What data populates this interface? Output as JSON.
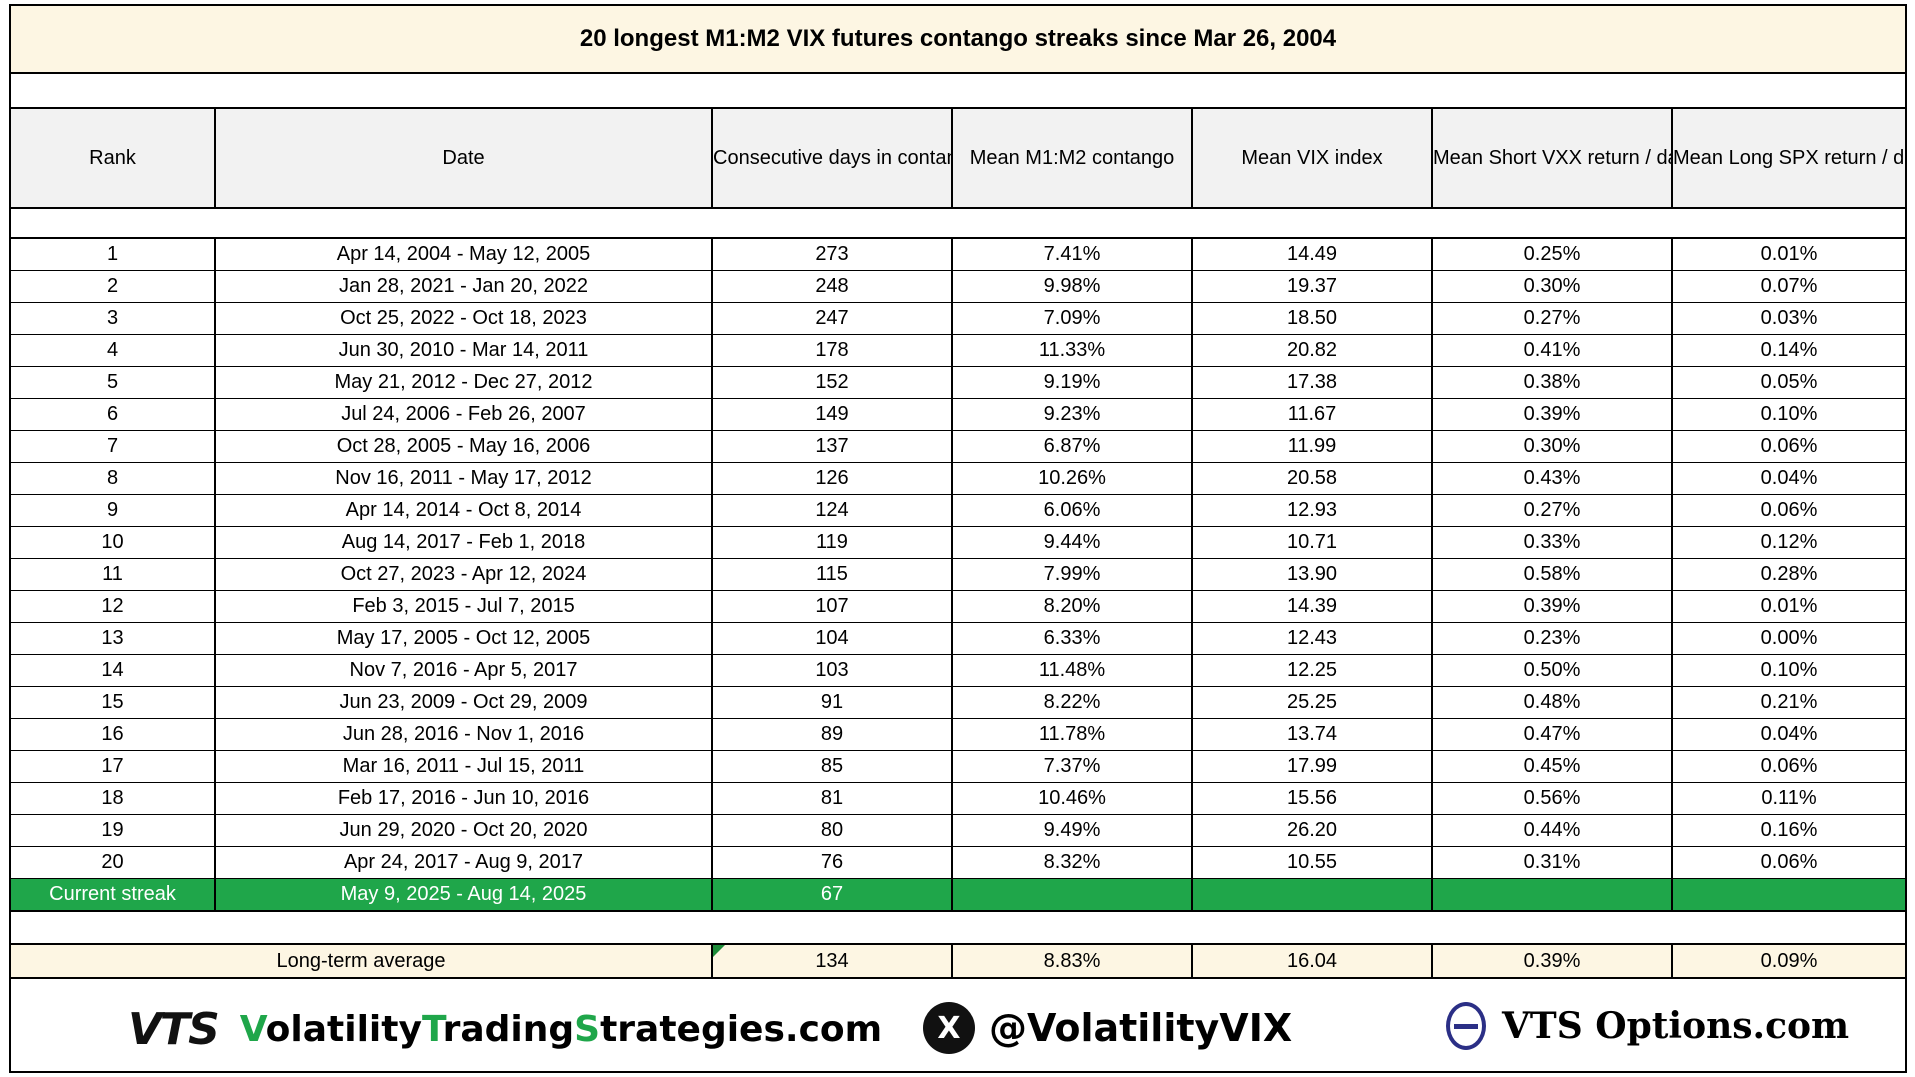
{
  "title": "20 longest M1:M2 VIX futures contango streaks since Mar 26, 2004",
  "headers": [
    "Rank",
    "Date",
    "Consecutive days in contango",
    "Mean M1:M2 contango",
    "Mean VIX index",
    "Mean Short VXX return / day",
    "Mean Long SPX return / day"
  ],
  "rows": [
    {
      "rank": "1",
      "date": "Apr 14, 2004  -  May 12, 2005",
      "days": "273",
      "contango": "7.41%",
      "vix": "14.49",
      "vxx": "0.25%",
      "spx": "0.01%"
    },
    {
      "rank": "2",
      "date": "Jan 28, 2021  -  Jan 20, 2022",
      "days": "248",
      "contango": "9.98%",
      "vix": "19.37",
      "vxx": "0.30%",
      "spx": "0.07%"
    },
    {
      "rank": "3",
      "date": "Oct 25, 2022  -  Oct 18, 2023",
      "days": "247",
      "contango": "7.09%",
      "vix": "18.50",
      "vxx": "0.27%",
      "spx": "0.03%"
    },
    {
      "rank": "4",
      "date": "Jun 30, 2010  -  Mar 14, 2011",
      "days": "178",
      "contango": "11.33%",
      "vix": "20.82",
      "vxx": "0.41%",
      "spx": "0.14%"
    },
    {
      "rank": "5",
      "date": "May 21, 2012  -  Dec 27, 2012",
      "days": "152",
      "contango": "9.19%",
      "vix": "17.38",
      "vxx": "0.38%",
      "spx": "0.05%"
    },
    {
      "rank": "6",
      "date": "Jul 24, 2006  -  Feb 26, 2007",
      "days": "149",
      "contango": "9.23%",
      "vix": "11.67",
      "vxx": "0.39%",
      "spx": "0.10%"
    },
    {
      "rank": "7",
      "date": "Oct 28, 2005  -  May 16, 2006",
      "days": "137",
      "contango": "6.87%",
      "vix": "11.99",
      "vxx": "0.30%",
      "spx": "0.06%"
    },
    {
      "rank": "8",
      "date": "Nov 16, 2011  -  May 17, 2012",
      "days": "126",
      "contango": "10.26%",
      "vix": "20.58",
      "vxx": "0.43%",
      "spx": "0.04%"
    },
    {
      "rank": "9",
      "date": "Apr 14, 2014  -  Oct 8, 2014",
      "days": "124",
      "contango": "6.06%",
      "vix": "12.93",
      "vxx": "0.27%",
      "spx": "0.06%"
    },
    {
      "rank": "10",
      "date": "Aug 14, 2017  -  Feb 1, 2018",
      "days": "119",
      "contango": "9.44%",
      "vix": "10.71",
      "vxx": "0.33%",
      "spx": "0.12%"
    },
    {
      "rank": "11",
      "date": "Oct 27, 2023  -  Apr 12, 2024",
      "days": "115",
      "contango": "7.99%",
      "vix": "13.90",
      "vxx": "0.58%",
      "spx": "0.28%"
    },
    {
      "rank": "12",
      "date": "Feb 3, 2015  -  Jul 7, 2015",
      "days": "107",
      "contango": "8.20%",
      "vix": "14.39",
      "vxx": "0.39%",
      "spx": "0.01%"
    },
    {
      "rank": "13",
      "date": "May 17, 2005  -  Oct 12, 2005",
      "days": "104",
      "contango": "6.33%",
      "vix": "12.43",
      "vxx": "0.23%",
      "spx": "0.00%"
    },
    {
      "rank": "14",
      "date": "Nov 7, 2016  -  Apr 5, 2017",
      "days": "103",
      "contango": "11.48%",
      "vix": "12.25",
      "vxx": "0.50%",
      "spx": "0.10%"
    },
    {
      "rank": "15",
      "date": "Jun 23, 2009  -  Oct 29, 2009",
      "days": "91",
      "contango": "8.22%",
      "vix": "25.25",
      "vxx": "0.48%",
      "spx": "0.21%"
    },
    {
      "rank": "16",
      "date": "Jun 28, 2016  -  Nov 1, 2016",
      "days": "89",
      "contango": "11.78%",
      "vix": "13.74",
      "vxx": "0.47%",
      "spx": "0.04%"
    },
    {
      "rank": "17",
      "date": "Mar 16, 2011  -  Jul 15, 2011",
      "days": "85",
      "contango": "7.37%",
      "vix": "17.99",
      "vxx": "0.45%",
      "spx": "0.06%"
    },
    {
      "rank": "18",
      "date": "Feb 17, 2016  -  Jun 10, 2016",
      "days": "81",
      "contango": "10.46%",
      "vix": "15.56",
      "vxx": "0.56%",
      "spx": "0.11%"
    },
    {
      "rank": "19",
      "date": "Jun 29, 2020  -  Oct 20, 2020",
      "days": "80",
      "contango": "9.49%",
      "vix": "26.20",
      "vxx": "0.44%",
      "spx": "0.16%"
    },
    {
      "rank": "20",
      "date": "Apr 24, 2017  -  Aug 9, 2017",
      "days": "76",
      "contango": "8.32%",
      "vix": "10.55",
      "vxx": "0.31%",
      "spx": "0.06%"
    }
  ],
  "current": {
    "rank": "Current streak",
    "date": "May 9, 2025  -  Aug 14, 2025",
    "days": "67"
  },
  "average": {
    "label": "Long-term average",
    "days": "134",
    "contango": "8.83%",
    "vix": "16.04",
    "vxx": "0.39%",
    "spx": "0.09%"
  },
  "footer": {
    "logo_text": "VTS",
    "site_parts": [
      "V",
      "olatility",
      "T",
      "rading",
      "S",
      "trategies.com"
    ],
    "x_glyph": "X",
    "handle": "@VolatilityVIX",
    "options_site": "VTS Options.com"
  },
  "colors": {
    "current_row": "#1fa64a",
    "title_bg": "#fdf6e3",
    "header_bg": "#f2f2f2",
    "accent_green": "#1fa64a",
    "theta_blue": "#2b2f86"
  }
}
